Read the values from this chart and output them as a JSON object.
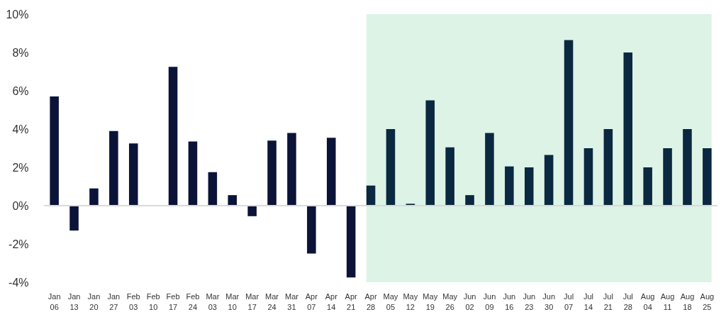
{
  "chart_data": {
    "type": "bar",
    "categories": [
      "Jan 06",
      "Jan 13",
      "Jan 20",
      "Jan 27",
      "Feb 03",
      "Feb 10",
      "Feb 17",
      "Feb 24",
      "Mar 03",
      "Mar 10",
      "Mar 17",
      "Mar 24",
      "Mar 31",
      "Apr 07",
      "Apr 14",
      "Apr 21",
      "Apr 28",
      "May 05",
      "May 12",
      "May 19",
      "May 26",
      "Jun 02",
      "Jun 09",
      "Jun 16",
      "Jun 23",
      "Jun 30",
      "Jul 07",
      "Jul 14",
      "Jul 21",
      "Jul 28",
      "Aug 04",
      "Aug 11",
      "Aug 18",
      "Aug 25"
    ],
    "values": [
      5.7,
      -1.3,
      0.9,
      3.9,
      3.25,
      0,
      7.25,
      3.35,
      1.75,
      0.55,
      -0.55,
      3.4,
      3.8,
      -2.5,
      3.55,
      -3.75,
      1.05,
      4.0,
      0.1,
      5.5,
      3.05,
      0.55,
      3.8,
      2.05,
      2.0,
      2.65,
      8.65,
      3.0,
      4.0,
      8.0,
      2.0,
      3.0,
      4.0,
      3.0
    ],
    "colors": [
      "#0b1338",
      "#0b1338",
      "#0b1338",
      "#0b1338",
      "#0b1338",
      "#0b1338",
      "#0b1338",
      "#0b1338",
      "#0b1338",
      "#0b1338",
      "#0b1338",
      "#0b1338",
      "#0b1338",
      "#0b1338",
      "#0b1338",
      "#0b1338",
      "#0a2840",
      "#0a2840",
      "#0a2840",
      "#0a2840",
      "#0a2840",
      "#0a2840",
      "#0a2840",
      "#0a2840",
      "#0a2840",
      "#0a2840",
      "#0a2840",
      "#0a2840",
      "#0a2840",
      "#0a2840",
      "#0a2840",
      "#0a2840",
      "#0a2840",
      "#0a2840"
    ],
    "ylim": [
      -4,
      10
    ],
    "yticks": [
      {
        "value": -4,
        "label": "-4%"
      },
      {
        "value": -2,
        "label": "-2%"
      },
      {
        "value": 0,
        "label": "0%"
      },
      {
        "value": 2,
        "label": "2%"
      },
      {
        "value": 4,
        "label": "4%"
      },
      {
        "value": 6,
        "label": "6%"
      },
      {
        "value": 8,
        "label": "8%"
      },
      {
        "value": 10,
        "label": "10%"
      }
    ],
    "bands": [
      {
        "axis": "x",
        "from": "Apr 28",
        "to": "Aug 25",
        "color": "#dcf3e6"
      }
    ],
    "ref_lines": [
      {
        "axis": "y",
        "value": 0,
        "color": "#d9d9d9"
      }
    ]
  }
}
